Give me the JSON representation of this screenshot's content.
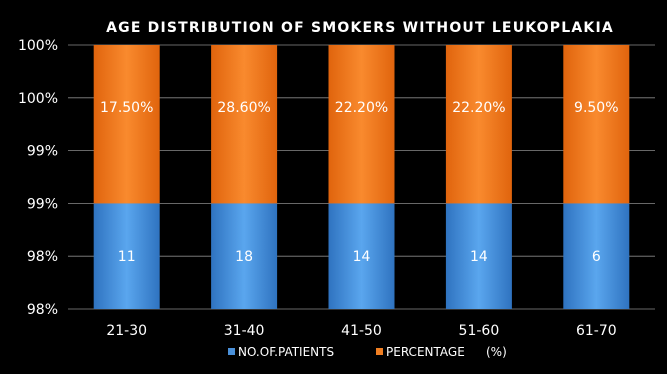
{
  "chart_data": {
    "type": "bar",
    "stacked": true,
    "title": "AGE DISTRIBUTION OF SMOKERS WITHOUT LEUKOPLAKIA",
    "categories": [
      "21-30",
      "31-40",
      "41-50",
      "51-60",
      "61-70"
    ],
    "y_tick_labels": [
      "98%",
      "98%",
      "99%",
      "99%",
      "100%",
      "100%"
    ],
    "grid": true,
    "legend_position": "bottom",
    "series": [
      {
        "name": "NO.OF.PATIENTS",
        "values": [
          11,
          18,
          14,
          14,
          6
        ],
        "labels": [
          "11",
          "18",
          "14",
          "14",
          "6"
        ],
        "color": "#4a90d9",
        "share_of_axis": 0.4
      },
      {
        "name": "PERCENTAGE",
        "values": [
          17.5,
          28.6,
          22.2,
          22.2,
          9.5
        ],
        "labels": [
          "17.50%",
          "28.60%",
          "22.20%",
          "22.20%",
          "9.50%"
        ],
        "color": "#f07f22",
        "share_of_axis": 0.6
      }
    ],
    "legend_extra": "(%)",
    "background": "#000000",
    "text_color": "#ffffff"
  }
}
